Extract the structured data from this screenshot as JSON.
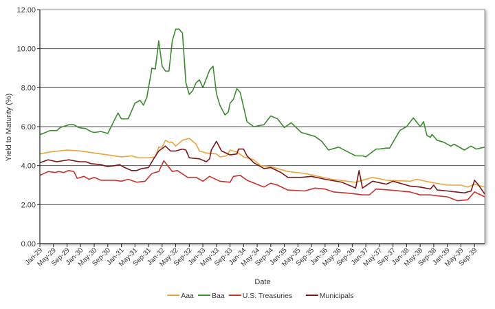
{
  "chart_data": {
    "type": "line",
    "title": "",
    "xlabel": "Date",
    "ylabel": "Yield to Maturity (%)",
    "ylim": [
      0,
      12
    ],
    "yticks": [
      "0.00",
      "2.00",
      "4.00",
      "6.00",
      "8.00",
      "10.00",
      "12.00"
    ],
    "x_unit": "months since Jan-1929",
    "xlim": [
      0,
      131
    ],
    "xticks": [
      "Jan-29",
      "May-29",
      "Sep-29",
      "Jan-30",
      "May-30",
      "Sep-30",
      "Jan-31",
      "May-31",
      "Sep-31",
      "Jan-32",
      "May-32",
      "Sep-32",
      "Jan-33",
      "May-33",
      "Sep-33",
      "Jan-34",
      "May-34",
      "Sep-34",
      "Jan-35",
      "May-35",
      "Sep-35",
      "Jan-36",
      "May-36",
      "Sep-36",
      "Jan-37",
      "May-37",
      "Sep-37",
      "Jan-38",
      "May-38",
      "Sep-38",
      "Jan-39",
      "May-39",
      "Sep-39"
    ],
    "grid": true,
    "legend_position": "bottom",
    "series": [
      {
        "name": "Aaa",
        "color": "#e9a43f",
        "x": [
          0,
          3,
          8,
          12,
          16,
          20,
          24,
          27,
          29,
          32,
          34,
          35,
          36,
          37,
          38,
          39,
          40,
          42,
          44,
          46,
          47,
          49,
          52,
          53,
          55,
          56,
          58,
          60,
          62,
          63,
          65,
          68,
          73,
          78,
          86,
          93,
          98,
          102,
          109,
          111,
          115,
          120,
          124,
          126,
          128,
          131
        ],
        "y": [
          4.6,
          4.7,
          4.8,
          4.75,
          4.65,
          4.55,
          4.45,
          4.5,
          4.4,
          4.4,
          4.45,
          4.95,
          4.95,
          5.3,
          5.2,
          5.2,
          5.0,
          5.3,
          5.4,
          5.1,
          4.75,
          4.65,
          4.6,
          4.45,
          4.5,
          4.8,
          4.7,
          4.45,
          4.35,
          4.3,
          4.0,
          3.95,
          3.7,
          3.6,
          3.3,
          3.15,
          3.4,
          3.25,
          3.2,
          3.3,
          3.15,
          3.0,
          3.0,
          2.9,
          3.05,
          2.9
        ]
      },
      {
        "name": "Baa",
        "color": "#3a8a2e",
        "x": [
          0,
          1,
          3,
          5,
          6,
          8.5,
          10,
          11.5,
          13.5,
          15,
          16,
          18,
          20,
          23,
          24,
          26,
          28,
          29.5,
          30.5,
          31.5,
          33,
          34,
          35,
          36,
          37,
          38,
          39,
          40,
          41,
          42,
          43,
          44,
          45,
          46,
          47,
          48,
          50,
          51,
          52,
          53,
          54.5,
          55.5,
          56,
          57,
          58,
          59,
          61,
          63,
          66,
          68,
          70,
          72,
          74,
          77,
          81,
          83,
          85,
          88,
          93,
          95,
          96,
          99,
          100,
          102,
          103,
          106,
          108,
          110,
          112,
          113,
          114,
          115,
          115.5,
          117,
          119,
          121,
          122,
          125,
          127,
          128.5,
          131
        ],
        "y": [
          5.6,
          5.65,
          5.8,
          5.8,
          5.95,
          6.1,
          6.1,
          5.95,
          5.9,
          5.75,
          5.7,
          5.75,
          5.65,
          6.7,
          6.4,
          6.4,
          7.2,
          7.35,
          7.1,
          7.5,
          9.0,
          8.95,
          10.4,
          9.1,
          8.85,
          8.85,
          10.4,
          11.0,
          11.0,
          10.8,
          8.25,
          7.65,
          7.85,
          8.25,
          8.4,
          8.0,
          8.9,
          9.1,
          7.7,
          7.1,
          6.6,
          6.75,
          7.2,
          7.4,
          7.95,
          7.75,
          6.25,
          6.0,
          6.1,
          6.55,
          6.4,
          5.95,
          6.2,
          5.7,
          5.5,
          5.25,
          4.8,
          4.95,
          4.5,
          4.5,
          4.45,
          4.85,
          4.85,
          4.9,
          4.9,
          5.8,
          6.0,
          6.45,
          6.0,
          6.25,
          5.55,
          5.45,
          5.6,
          5.3,
          5.2,
          5.0,
          5.1,
          4.8,
          5.0,
          4.85,
          4.95
        ]
      },
      {
        "name": "U.S. Treasuries",
        "color": "#c8322b",
        "x": [
          0,
          2.5,
          4.5,
          5.5,
          7,
          8.5,
          10,
          11,
          13,
          14.5,
          16,
          18,
          22,
          24,
          26,
          28.5,
          31,
          33,
          35,
          36.5,
          39,
          40.5,
          43.5,
          46,
          48,
          50,
          53,
          56,
          57,
          59,
          61,
          66,
          68,
          70,
          73,
          78,
          81,
          84,
          86.5,
          90,
          93,
          95,
          97,
          99,
          103,
          109,
          112,
          115,
          117,
          120,
          123,
          126,
          128,
          131
        ],
        "y": [
          3.5,
          3.7,
          3.65,
          3.7,
          3.65,
          3.75,
          3.7,
          3.35,
          3.45,
          3.3,
          3.4,
          3.25,
          3.25,
          3.2,
          3.3,
          3.15,
          3.2,
          3.6,
          3.7,
          4.25,
          3.7,
          3.75,
          3.4,
          3.4,
          3.2,
          3.45,
          3.2,
          3.15,
          3.45,
          3.5,
          3.25,
          2.9,
          3.1,
          3.0,
          2.75,
          2.7,
          2.85,
          2.8,
          2.65,
          2.6,
          2.55,
          2.5,
          2.5,
          2.8,
          2.75,
          2.65,
          2.5,
          2.5,
          2.45,
          2.4,
          2.2,
          2.25,
          2.65,
          2.4
        ]
      },
      {
        "name": "Municipals",
        "color": "#7a1616",
        "x": [
          0,
          2.4,
          5,
          8.5,
          11.6,
          13.5,
          15,
          18,
          20,
          22,
          23.5,
          25,
          27,
          28.5,
          30,
          32,
          33.5,
          35,
          37,
          38.5,
          40,
          42,
          43,
          44,
          47,
          49,
          50,
          50.5,
          52,
          53.5,
          56,
          58,
          58.5,
          60,
          61,
          63,
          66,
          68,
          71,
          73,
          77,
          80,
          84,
          89,
          93,
          94,
          95,
          98,
          102,
          104,
          109,
          112,
          115,
          116,
          117,
          120,
          125,
          127,
          128,
          129,
          131
        ],
        "y": [
          4.15,
          4.3,
          4.2,
          4.3,
          4.2,
          4.2,
          4.1,
          4.05,
          3.95,
          4.0,
          4.05,
          3.9,
          3.75,
          3.75,
          3.85,
          3.9,
          4.35,
          4.75,
          5.0,
          4.75,
          4.75,
          4.85,
          4.8,
          4.4,
          4.35,
          4.2,
          4.35,
          4.8,
          5.25,
          4.75,
          4.55,
          4.6,
          4.85,
          4.85,
          4.5,
          4.15,
          3.85,
          3.9,
          3.65,
          3.4,
          3.4,
          3.45,
          3.3,
          3.15,
          2.85,
          3.75,
          2.85,
          3.2,
          3.05,
          3.2,
          2.95,
          2.9,
          2.8,
          3.0,
          2.75,
          2.7,
          2.6,
          2.7,
          3.25,
          3.05,
          2.55
        ]
      }
    ]
  }
}
